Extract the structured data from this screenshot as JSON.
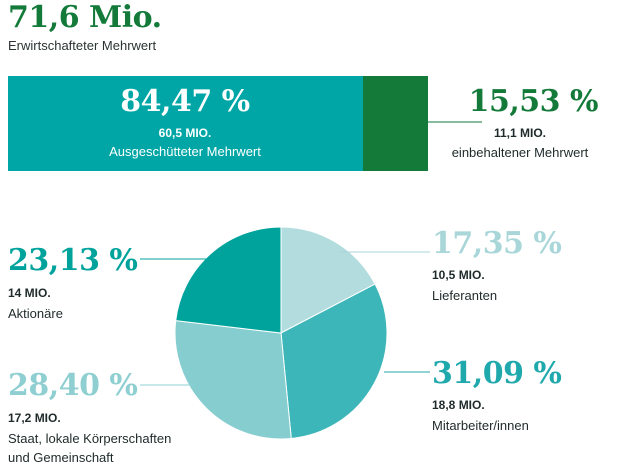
{
  "header": {
    "total_value": "71,6 Mio.",
    "total_label": "Erwirtschafteter Mehrwert"
  },
  "bar": {
    "distributed": {
      "percent_label": "84,47 %",
      "amount": "60,5 MIO.",
      "label": "Ausgeschütteter Mehrwert",
      "value": 84.47,
      "color": "#00a6a6"
    },
    "retained": {
      "percent_label": "15,53 %",
      "amount": "11,1 MIO.",
      "label": "einbehaltener Mehrwert",
      "value": 15.53,
      "color": "#137a3a"
    }
  },
  "chart_data": [
    {
      "type": "bar",
      "stacked": true,
      "categories": [
        "Ausgeschütteter Mehrwert",
        "einbehaltener Mehrwert"
      ],
      "values": [
        84.47,
        15.53
      ],
      "amounts": [
        "60,5 MIO.",
        "11,1 MIO."
      ]
    },
    {
      "type": "pie",
      "slices": [
        {
          "label": "Lieferanten",
          "percent_label": "17,35 %",
          "amount": "10,5 MIO.",
          "value": 17.35,
          "color": "#b3dcdf",
          "text_color": "#a9d6d9"
        },
        {
          "label": "Mitarbeiter/innen",
          "percent_label": "31,09 %",
          "amount": "18,8 MIO.",
          "value": 31.09,
          "color": "#3db6ba",
          "text_color": "#20a9ad"
        },
        {
          "label": "Staat, lokale Körperschaften und Gemeinschaft",
          "label_lines": [
            "Staat, lokale Körperschaften",
            "und Gemeinschaft"
          ],
          "percent_label": "28,40 %",
          "amount": "17,2 MIO.",
          "value": 28.4,
          "color": "#86cdd0",
          "text_color": "#8fcfd2"
        },
        {
          "label": "Aktionäre",
          "percent_label": "23,13 %",
          "amount": "14 MIO.",
          "value": 23.13,
          "color": "#00a39c",
          "text_color": "#00a39c"
        }
      ]
    }
  ]
}
